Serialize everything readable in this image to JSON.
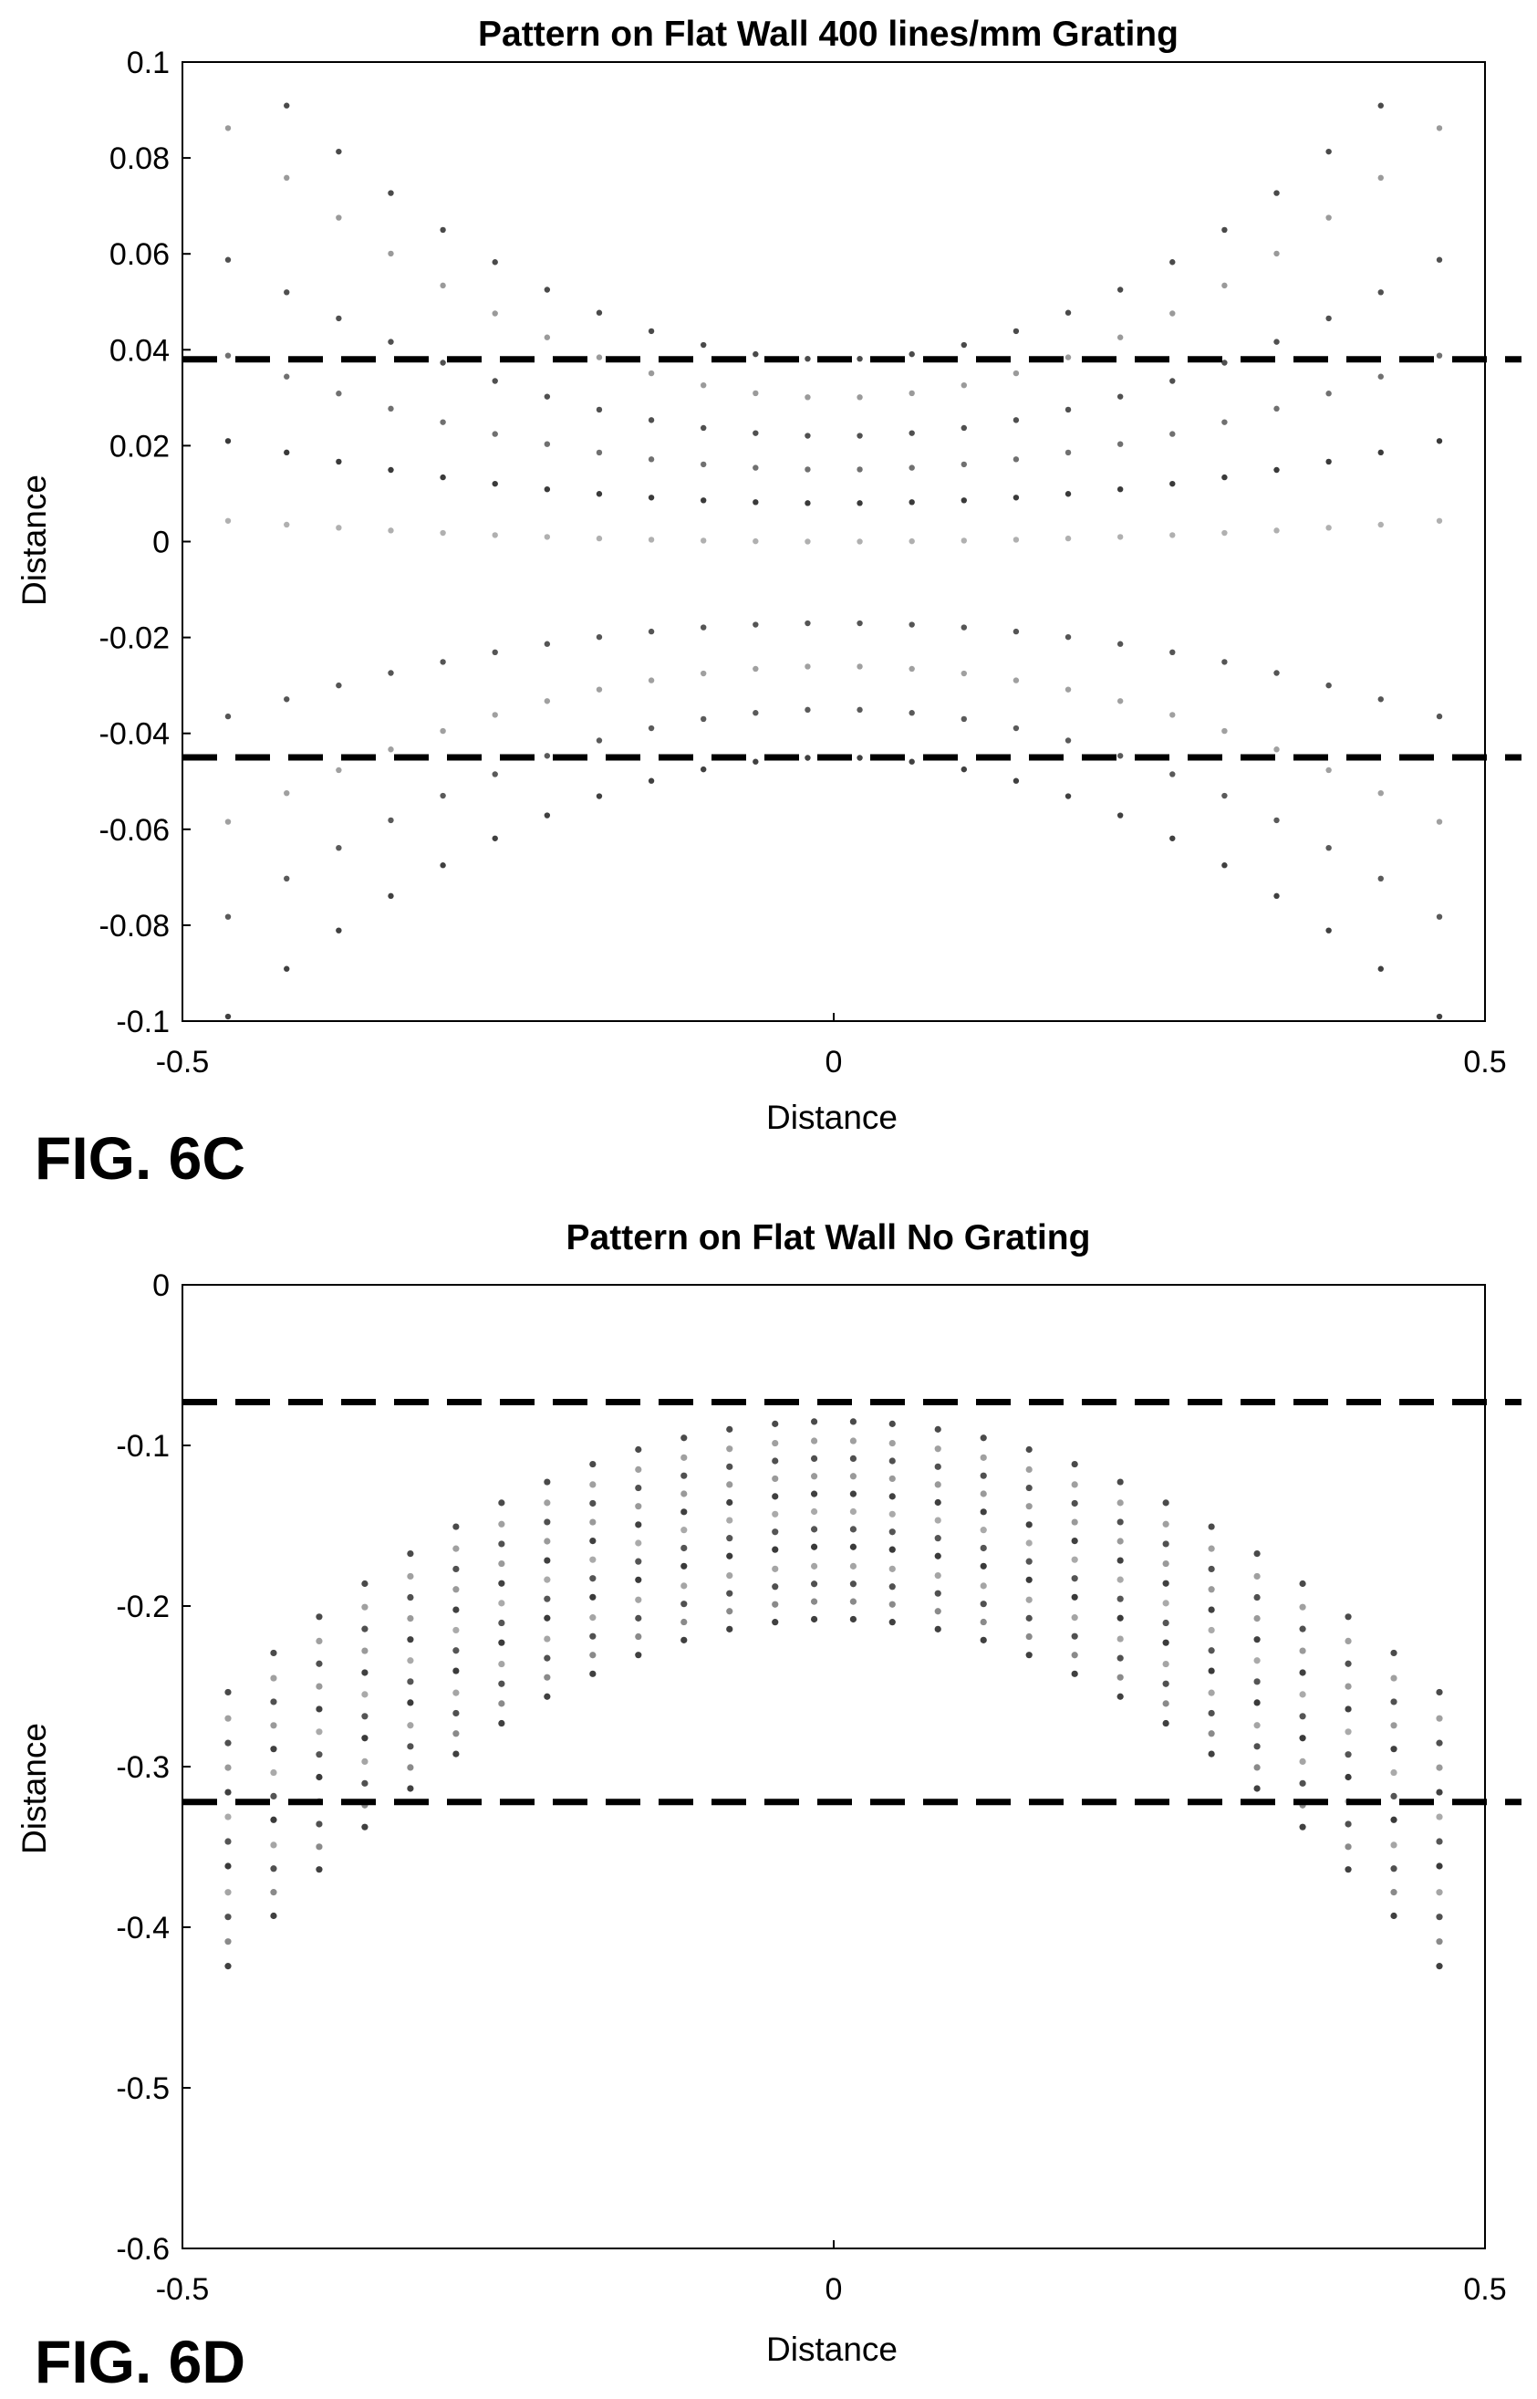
{
  "chart_data": [
    {
      "type": "scatter",
      "figure_label": "FIG. 6C",
      "title": "Pattern on Flat Wall 400 lines/mm Grating",
      "xlabel": "Distance",
      "ylabel": "Distance",
      "xlim": [
        -0.5,
        0.5
      ],
      "ylim": [
        -0.1,
        0.1
      ],
      "xticks": [
        "-0.5",
        "0",
        "0.5"
      ],
      "yticks": [
        "-0.1",
        "-0.08",
        "-0.06",
        "-0.04",
        "-0.02",
        "0",
        "0.02",
        "0.04",
        "0.06",
        "0.08",
        "0.1"
      ],
      "grid": false,
      "dashed_lines_y": [
        0.038,
        -0.045
      ],
      "dot_columns_x": [
        -0.465,
        -0.42,
        -0.38,
        -0.34,
        -0.3,
        -0.26,
        -0.22,
        -0.18,
        -0.14,
        -0.1,
        -0.06,
        -0.02,
        0.02,
        0.06,
        0.1,
        0.14,
        0.18,
        0.22,
        0.26,
        0.3,
        0.34,
        0.38,
        0.42,
        0.465
      ],
      "series": [
        {
          "center_y": 0.038,
          "curvature": 0.3,
          "color": "#4a4a4a"
        },
        {
          "center_y": 0.03,
          "curvature": 0.26,
          "color": "#9a9a9a"
        },
        {
          "center_y": 0.022,
          "curvature": 0.17,
          "color": "#505050"
        },
        {
          "center_y": 0.015,
          "curvature": 0.11,
          "color": "#707070"
        },
        {
          "center_y": 0.008,
          "curvature": 0.06,
          "color": "#3a3a3a"
        },
        {
          "center_y": 0.0,
          "curvature": 0.02,
          "color": "#b0b0b0"
        },
        {
          "center_y": -0.017,
          "curvature": -0.09,
          "color": "#555555"
        },
        {
          "center_y": -0.026,
          "curvature": -0.15,
          "color": "#a0a0a0"
        },
        {
          "center_y": -0.035,
          "curvature": -0.2,
          "color": "#5a5a5a"
        },
        {
          "center_y": -0.045,
          "curvature": -0.25,
          "color": "#404040"
        }
      ]
    },
    {
      "type": "scatter",
      "figure_label": "FIG. 6D",
      "title": "Pattern on Flat Wall No Grating",
      "xlabel": "Distance",
      "ylabel": "Distance",
      "xlim": [
        -0.5,
        0.5
      ],
      "ylim": [
        -0.6,
        0
      ],
      "xticks": [
        "-0.5",
        "0",
        "0.5"
      ],
      "yticks": [
        "-0.6",
        "-0.5",
        "-0.4",
        "-0.3",
        "-0.2",
        "-0.1",
        "0"
      ],
      "grid": false,
      "dashed_lines_y": [
        -0.073,
        -0.322
      ],
      "dot_columns_x": [
        -0.465,
        -0.43,
        -0.395,
        -0.36,
        -0.325,
        -0.29,
        -0.255,
        -0.22,
        -0.185,
        -0.15,
        -0.115,
        -0.08,
        -0.045,
        -0.015,
        0.015,
        0.045,
        0.08,
        0.115,
        0.15,
        0.185,
        0.22,
        0.255,
        0.29,
        0.325,
        0.36,
        0.395,
        0.43,
        0.465
      ],
      "series": [
        {
          "center_y": -0.085,
          "curvature": -0.78,
          "color": "#4a4a4a"
        },
        {
          "center_y": -0.097,
          "curvature": -0.8,
          "color": "#a0a0a0"
        },
        {
          "center_y": -0.108,
          "curvature": -0.82,
          "color": "#505050"
        },
        {
          "center_y": -0.119,
          "curvature": -0.84,
          "color": "#9a9a9a"
        },
        {
          "center_y": -0.13,
          "curvature": -0.86,
          "color": "#404040"
        },
        {
          "center_y": -0.141,
          "curvature": -0.88,
          "color": "#aaaaaa"
        },
        {
          "center_y": -0.152,
          "curvature": -0.9,
          "color": "#555555"
        },
        {
          "center_y": -0.163,
          "curvature": -0.92,
          "color": "#3a3a3a"
        },
        {
          "center_y": -0.175,
          "curvature": -0.94,
          "color": "#a5a5a5"
        },
        {
          "center_y": -0.186,
          "curvature": -0.96,
          "color": "#505050"
        },
        {
          "center_y": -0.197,
          "curvature": -0.98,
          "color": "#8a8a8a"
        },
        {
          "center_y": -0.208,
          "curvature": -1.0,
          "color": "#404040"
        }
      ]
    }
  ]
}
